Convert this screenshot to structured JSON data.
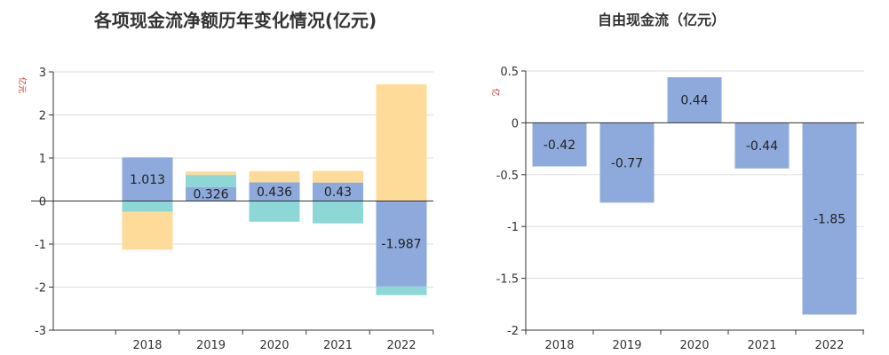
{
  "chart_data": [
    {
      "type": "bar",
      "title": "各项现金流净额历年变化情况(亿元)",
      "ylabel": "亿元",
      "categories": [
        "2018",
        "2019",
        "2020",
        "2021",
        "2022"
      ],
      "ylim": [
        -3,
        3
      ],
      "yticks": [
        3,
        2,
        1,
        0,
        -1,
        -2,
        -3
      ],
      "grid": true,
      "stacked": true,
      "series": [
        {
          "name": "",
          "color": "#8eaadc",
          "values": [
            1.013,
            0.326,
            0.436,
            0.43,
            -1.987
          ],
          "labels": [
            "1.013",
            "0.326",
            "0.436",
            "0.43",
            "-1.987"
          ]
        },
        {
          "name": "",
          "color": "#8dd7d7",
          "values": [
            -0.25,
            0.28,
            -0.48,
            -0.52,
            -0.2
          ]
        },
        {
          "name": "",
          "color": "#ffdb99",
          "values": [
            -0.88,
            0.08,
            0.26,
            0.27,
            2.71
          ]
        }
      ]
    },
    {
      "type": "bar",
      "title": "自由现金流（亿元）",
      "ylabel": "亿",
      "categories": [
        "2018",
        "2019",
        "2020",
        "2021",
        "2022"
      ],
      "ylim": [
        -2,
        0.5
      ],
      "yticks": [
        0.5,
        0,
        -0.5,
        -1,
        -1.5,
        -2
      ],
      "grid": true,
      "series": [
        {
          "name": "",
          "color": "#8eaadc",
          "values": [
            -0.42,
            -0.77,
            0.44,
            -0.44,
            -1.85
          ],
          "labels": [
            "-0.42",
            "-0.77",
            "0.44",
            "-0.44",
            "-1.85"
          ]
        }
      ]
    }
  ]
}
